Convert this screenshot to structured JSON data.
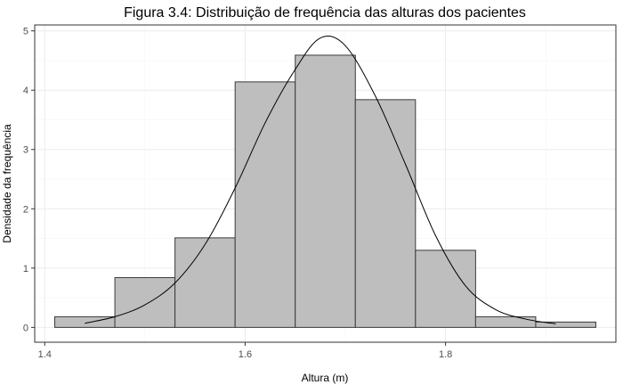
{
  "chart_data": {
    "type": "bar",
    "title": "Figura 3.4: Distribuição de frequência das alturas dos pacientes",
    "xlabel": "Altura (m)",
    "ylabel": "Densidade da frequência",
    "xlim": [
      1.39,
      1.97
    ],
    "ylim": [
      -0.25,
      5.1
    ],
    "x_ticks": [
      1.4,
      1.6,
      1.8
    ],
    "x_tick_labels": [
      "1.4",
      "1.6",
      "1.8"
    ],
    "y_ticks": [
      0,
      1,
      2,
      3,
      4,
      5
    ],
    "y_tick_labels": [
      "0",
      "1",
      "2",
      "3",
      "4",
      "5"
    ],
    "grid": true,
    "series": [
      {
        "kind": "histogram",
        "bins": [
          {
            "x0": 1.41,
            "x1": 1.47,
            "density": 0.18
          },
          {
            "x0": 1.47,
            "x1": 1.53,
            "density": 0.84
          },
          {
            "x0": 1.53,
            "x1": 1.59,
            "density": 1.51
          },
          {
            "x0": 1.59,
            "x1": 1.65,
            "density": 4.14
          },
          {
            "x0": 1.65,
            "x1": 1.71,
            "density": 4.59
          },
          {
            "x0": 1.71,
            "x1": 1.77,
            "density": 3.84
          },
          {
            "x0": 1.77,
            "x1": 1.83,
            "density": 1.3
          },
          {
            "x0": 1.83,
            "x1": 1.89,
            "density": 0.18
          },
          {
            "x0": 1.89,
            "x1": 1.95,
            "density": 0.09
          }
        ],
        "color": "#bebebe",
        "edge_color": "#3a3a3a"
      },
      {
        "kind": "density-line",
        "color": "#000000",
        "points": [
          {
            "x": 1.44,
            "y": 0.07
          },
          {
            "x": 1.47,
            "y": 0.18
          },
          {
            "x": 1.5,
            "y": 0.38
          },
          {
            "x": 1.53,
            "y": 0.75
          },
          {
            "x": 1.56,
            "y": 1.4
          },
          {
            "x": 1.59,
            "y": 2.35
          },
          {
            "x": 1.62,
            "y": 3.45
          },
          {
            "x": 1.65,
            "y": 4.35
          },
          {
            "x": 1.675,
            "y": 4.88
          },
          {
            "x": 1.7,
            "y": 4.75
          },
          {
            "x": 1.73,
            "y": 3.9
          },
          {
            "x": 1.76,
            "y": 2.75
          },
          {
            "x": 1.79,
            "y": 1.55
          },
          {
            "x": 1.82,
            "y": 0.7
          },
          {
            "x": 1.85,
            "y": 0.3
          },
          {
            "x": 1.88,
            "y": 0.14
          },
          {
            "x": 1.91,
            "y": 0.06
          }
        ]
      }
    ]
  }
}
